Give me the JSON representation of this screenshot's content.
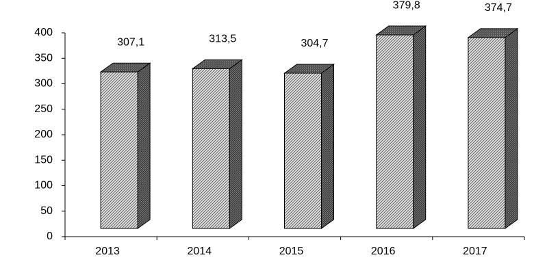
{
  "chart_data": {
    "type": "bar3d",
    "categories": [
      "2013",
      "2014",
      "2015",
      "2016",
      "2017"
    ],
    "values": [
      307.1,
      313.5,
      304.7,
      379.8,
      374.7
    ],
    "value_labels": [
      "307,1",
      "313,5",
      "304,7",
      "379,8",
      "374,7"
    ],
    "ylim": [
      0,
      400
    ],
    "yticks": [
      0,
      50,
      100,
      150,
      200,
      250,
      300,
      350,
      400
    ]
  }
}
